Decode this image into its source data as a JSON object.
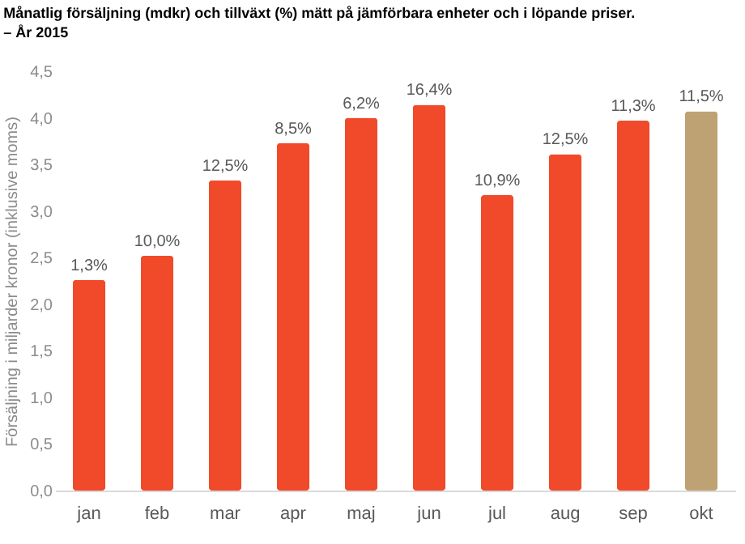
{
  "chart_data": {
    "type": "bar",
    "title": "Månatlig försäljning (mdkr) och tillväxt (%) mätt på jämförbara enheter och i löpande priser.",
    "subtitle": "– År 2015",
    "ylabel": "Försäljning i miljarder kronor (inklusive moms)",
    "categories": [
      "jan",
      "feb",
      "mar",
      "apr",
      "maj",
      "jun",
      "jul",
      "aug",
      "sep",
      "okt"
    ],
    "values": [
      2.26,
      2.52,
      3.33,
      3.73,
      4.0,
      4.14,
      3.17,
      3.61,
      3.97,
      4.07
    ],
    "annotations": [
      {
        "text": "1,3%",
        "x": "jan",
        "y": 2.26
      },
      {
        "text": "10,0%",
        "x": "feb",
        "y": 2.52
      },
      {
        "text": "12,5%",
        "x": "mar",
        "y": 3.33
      },
      {
        "text": "8,5%",
        "x": "apr",
        "y": 3.73
      },
      {
        "text": "6,2%",
        "x": "maj",
        "y": 4.0
      },
      {
        "text": "16,4%",
        "x": "jun",
        "y": 4.14
      },
      {
        "text": "10,9%",
        "x": "jul",
        "y": 3.17
      },
      {
        "text": "12,5%",
        "x": "aug",
        "y": 3.61
      },
      {
        "text": "11,3%",
        "x": "sep",
        "y": 3.97
      },
      {
        "text": "11,5%",
        "x": "okt",
        "y": 4.07
      }
    ],
    "colors": [
      "#f04a2a",
      "#f04a2a",
      "#f04a2a",
      "#f04a2a",
      "#f04a2a",
      "#f04a2a",
      "#f04a2a",
      "#f04a2a",
      "#f04a2a",
      "#bfa273"
    ],
    "ylim": [
      0,
      4.5
    ],
    "yticks": [
      {
        "value": 0,
        "label": "0,0"
      },
      {
        "value": 0.5,
        "label": "0,5"
      },
      {
        "value": 1,
        "label": "1,0"
      },
      {
        "value": 1.5,
        "label": "1,5"
      },
      {
        "value": 2,
        "label": "2,0"
      },
      {
        "value": 2.5,
        "label": "2,5"
      },
      {
        "value": 3,
        "label": "3,0"
      },
      {
        "value": 3.5,
        "label": "3,5"
      },
      {
        "value": 4,
        "label": "4,0"
      },
      {
        "value": 4.5,
        "label": "4,5"
      }
    ],
    "grid": false
  }
}
